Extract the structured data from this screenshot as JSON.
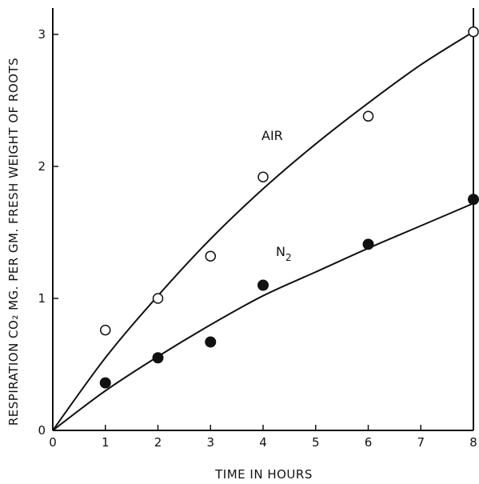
{
  "chart_data": {
    "type": "scatter",
    "xlabel": "TIME IN HOURS",
    "ylabel": "RESPIRATION CO₂ MG. PER GM. FRESH WEIGHT OF ROOTS",
    "xlim": [
      0,
      8
    ],
    "ylim": [
      0,
      3.2
    ],
    "x_ticks": [
      0,
      1,
      2,
      3,
      4,
      5,
      6,
      7,
      8
    ],
    "y_ticks": [
      0,
      1,
      2,
      3
    ],
    "grid": false,
    "series": [
      {
        "name": "AIR",
        "marker": "open-circle",
        "x": [
          1,
          2,
          3,
          4,
          6,
          8
        ],
        "y": [
          0.76,
          1.0,
          1.32,
          1.92,
          2.38,
          3.02
        ],
        "fit_curve": {
          "x": [
            0,
            1,
            2,
            3,
            4,
            5,
            6,
            7,
            8
          ],
          "y": [
            0,
            0.55,
            1.02,
            1.45,
            1.83,
            2.17,
            2.48,
            2.77,
            3.02
          ]
        }
      },
      {
        "name": "N",
        "name_subscript": "2",
        "marker": "filled-circle",
        "x": [
          1,
          2,
          3,
          4,
          6,
          8
        ],
        "y": [
          0.36,
          0.55,
          0.67,
          1.1,
          1.41,
          1.75
        ],
        "fit_curve": {
          "x": [
            0,
            1,
            2,
            3,
            4,
            5,
            6,
            7,
            8
          ],
          "y": [
            0,
            0.3,
            0.56,
            0.8,
            1.02,
            1.2,
            1.38,
            1.55,
            1.72
          ]
        }
      }
    ],
    "colors": {
      "ink": "#111111",
      "background": "#ffffff"
    }
  }
}
